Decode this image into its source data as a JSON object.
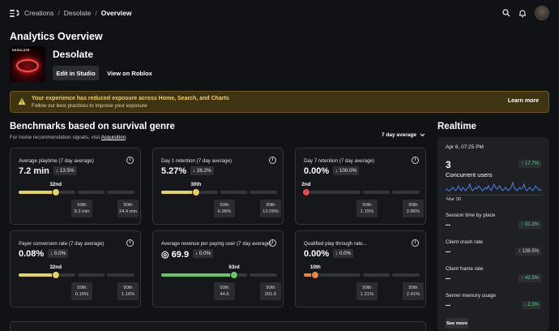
{
  "breadcrumb": {
    "items": [
      "Creations",
      "Desolate",
      "Overview"
    ]
  },
  "page_title": "Analytics Overview",
  "experience": {
    "name": "Desolate",
    "thumb_text": "DESOLATE",
    "edit_label": "Edit in Studio",
    "view_label": "View on Roblox"
  },
  "banner": {
    "title": "Your experience has reduced exposure across Home, Search, and Charts",
    "subtitle": "Follow our best practices to improve your exposure",
    "action": "Learn more",
    "color": "#3e3412"
  },
  "benchmarks": {
    "title": "Benchmarks based on survival genre",
    "subtitle_prefix": "For home recommendation signals, visit ",
    "subtitle_link": "Acquisition",
    "subtitle_suffix": ".",
    "period": "7 day average",
    "cards": [
      {
        "title": "Average playtime (7 day average)",
        "value": "7.2 min",
        "delta": "↓ 13.5%",
        "rank": "32nd",
        "percentile": 0.32,
        "color": "#e3d35a",
        "p50_label": "50th",
        "p50": "9.2 min",
        "p90_label": "90th",
        "p90": "24.4 min"
      },
      {
        "title": "Day 1 retention (7 day average)",
        "value": "5.27%",
        "delta": "↓ 26.2%",
        "rank": "30th",
        "percentile": 0.3,
        "color": "#e3d35a",
        "p50_label": "50th",
        "p50": "6.96%",
        "p90_label": "90th",
        "p90": "12.09%"
      },
      {
        "title": "Day 7 retention (7 day average)",
        "value": "0.00%",
        "delta": "↓ 100.0%",
        "rank": "2nd",
        "percentile": 0.02,
        "color": "#e5484d",
        "p50_label": "50th",
        "p50": "1.15%",
        "p90_label": "90th",
        "p90": "2.86%"
      },
      {
        "title": "Payer conversion rate (7 day average)",
        "value": "0.08%",
        "delta": "↓ 0.0%",
        "rank": "32nd",
        "percentile": 0.32,
        "color": "#e3d35a",
        "p50_label": "50th",
        "p50": "0.16%",
        "p90_label": "90th",
        "p90": "1.16%"
      },
      {
        "title": "Average revenue per paying user (7 day average)",
        "value": "◎ 69.9",
        "delta": "↓ 0.0%",
        "rank": "63rd",
        "percentile": 0.63,
        "color": "#6cc46a",
        "p50_label": "50th",
        "p50": "44.6",
        "p90_label": "90th",
        "p90": "201.6"
      },
      {
        "title": "Qualified play through rate...",
        "value": "0.00%",
        "delta": "↓ 0.0%",
        "rank": "10th",
        "percentile": 0.1,
        "color": "#e8843c",
        "p50_label": "50th",
        "p50": "1.21%",
        "p90_label": "90th",
        "p90": "2.41%"
      }
    ]
  },
  "realtime": {
    "title": "Realtime",
    "date": "Apr 6, 07:25 PM",
    "concurrent_value": "3",
    "concurrent_label": "Concurrent users",
    "concurrent_delta": "↑ 17.7%",
    "spark_label": "Mar 30",
    "spark": [
      2,
      3,
      2,
      2,
      3,
      4,
      3,
      2,
      3,
      5,
      3,
      2,
      4,
      3,
      2,
      3,
      4,
      6,
      3,
      2,
      3,
      4,
      3,
      5,
      4,
      3,
      2,
      3,
      4,
      3,
      5,
      3,
      2,
      4,
      6,
      4,
      3,
      4,
      5,
      3,
      2,
      3,
      4,
      3,
      2,
      3,
      4,
      7,
      4,
      3,
      2,
      3,
      4,
      3,
      4,
      6,
      3,
      2,
      3,
      4,
      3,
      2,
      3,
      5,
      4,
      3,
      2,
      3
    ],
    "metrics": [
      {
        "label": "Session time by place",
        "value": "--",
        "delta": "↑ 31.3%",
        "dir": "up"
      },
      {
        "label": "Client crash rate",
        "value": "--",
        "delta": "↑ 138.5%",
        "dir": "neutral"
      },
      {
        "label": "Client frame rate",
        "value": "--",
        "delta": "↑ 42.5%",
        "dir": "up"
      },
      {
        "label": "Server memory usage",
        "value": "--",
        "delta": "↓ 2.3%",
        "dir": "up"
      }
    ],
    "see_more": "See more"
  }
}
